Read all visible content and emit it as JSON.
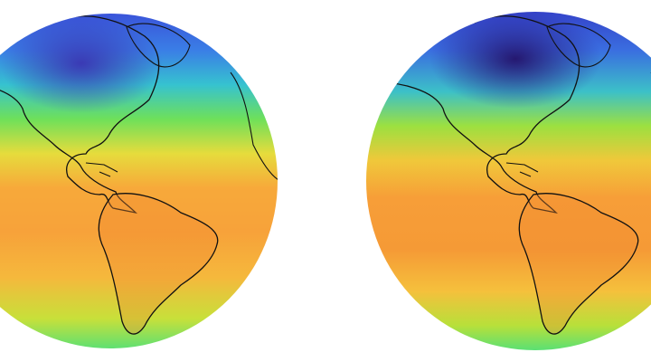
{
  "panels": [
    {
      "id": "left",
      "colormap": [
        "#3b2f9e",
        "#3a5fe0",
        "#35b6e8",
        "#2fe08a",
        "#9be03a",
        "#e8d83a",
        "#f7b23a",
        "#f59a35",
        "#f07a2a"
      ],
      "coldest_level": 0.15
    },
    {
      "id": "right",
      "colormap": [
        "#2a1a6e",
        "#3a5fe0",
        "#35b6e8",
        "#2fe08a",
        "#9be03a",
        "#e8d83a",
        "#f7b23a",
        "#f59a35",
        "#f07a2a"
      ],
      "coldest_level": 0.05
    }
  ],
  "coastline_color": "#111111",
  "background": "#ffffff"
}
